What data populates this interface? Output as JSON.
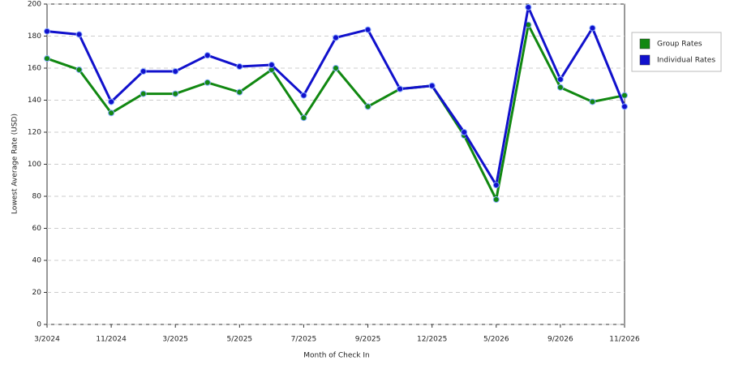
{
  "chart_data": {
    "type": "line",
    "x_label": "Month of Check In",
    "y_label": "Lowest Average Rate (USD)",
    "categories": [
      "3/2024",
      null,
      "11/2024",
      null,
      "3/2025",
      null,
      "5/2025",
      null,
      "7/2025",
      null,
      "9/2025",
      null,
      "12/2025",
      null,
      "5/2026",
      null,
      "9/2026",
      null,
      "11/2026"
    ],
    "series": [
      {
        "name": "Group Rates",
        "color": "#118811",
        "values": [
          166,
          159,
          132,
          144,
          144,
          151,
          145,
          159,
          129,
          160,
          136,
          147,
          149,
          118,
          78,
          187,
          148,
          139,
          143
        ]
      },
      {
        "name": "Individual Rates",
        "color": "#1111cc",
        "values": [
          183,
          181,
          139,
          158,
          158,
          168,
          161,
          162,
          143,
          179,
          184,
          147,
          149,
          120,
          87,
          198,
          153,
          185,
          136
        ]
      }
    ],
    "ylim": [
      0,
      200
    ],
    "yticks": [
      0,
      20,
      40,
      60,
      80,
      100,
      120,
      140,
      160,
      180,
      200
    ],
    "grid": true,
    "legend": "right"
  }
}
